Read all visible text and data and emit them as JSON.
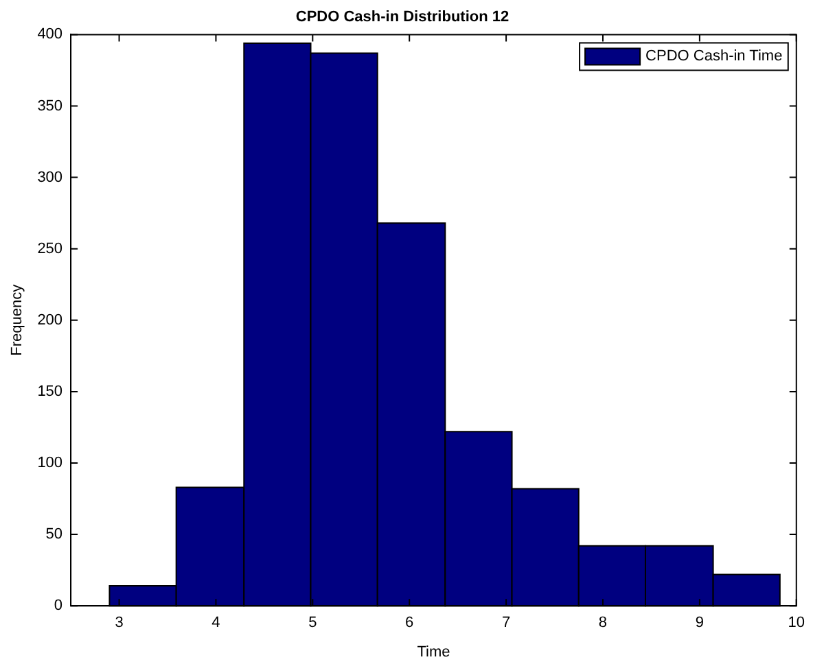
{
  "chart_data": {
    "type": "histogram",
    "title": "CPDO Cash-in Distribution 12",
    "xlabel": "Time",
    "ylabel": "Frequency",
    "bins": [
      2.9,
      3.59,
      4.29,
      4.98,
      5.67,
      6.37,
      7.06,
      7.75,
      8.44,
      9.14,
      9.83
    ],
    "series": [
      {
        "name": "CPDO Cash-in Time",
        "color": "#000080",
        "values": [
          14,
          83,
          394,
          387,
          268,
          122,
          82,
          42,
          42,
          22
        ]
      }
    ],
    "xlim": [
      2.5,
      10
    ],
    "xticks": [
      3,
      4,
      5,
      6,
      7,
      8,
      9,
      10
    ],
    "ylim": [
      0,
      400
    ],
    "yticks": [
      0,
      50,
      100,
      150,
      200,
      250,
      300,
      350,
      400
    ],
    "grid": false,
    "legend": "top right"
  }
}
